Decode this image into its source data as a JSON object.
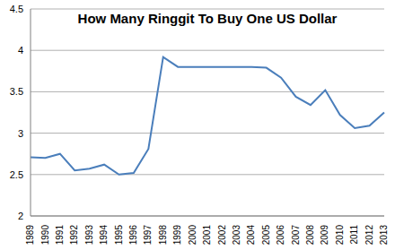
{
  "chart_data": {
    "type": "line",
    "title": "How Many Ringgit To Buy One US Dollar",
    "categories": [
      "1989",
      "1990",
      "1991",
      "1992",
      "1993",
      "1994",
      "1995",
      "1996",
      "1997",
      "1998",
      "1999",
      "2000",
      "2001",
      "2002",
      "2003",
      "2004",
      "2005",
      "2006",
      "2007",
      "2008",
      "2009",
      "2010",
      "2011",
      "2012",
      "2013"
    ],
    "values": [
      2.71,
      2.7,
      2.75,
      2.55,
      2.57,
      2.62,
      2.5,
      2.52,
      2.81,
      3.92,
      3.8,
      3.8,
      3.8,
      3.8,
      3.8,
      3.8,
      3.79,
      3.67,
      3.44,
      3.34,
      3.52,
      3.22,
      3.06,
      3.09,
      3.25
    ],
    "color": "#4a7ebb",
    "ylim": [
      2,
      4.5
    ],
    "yticks": [
      2,
      2.5,
      3,
      3.5,
      4,
      4.5
    ],
    "grid": true
  }
}
